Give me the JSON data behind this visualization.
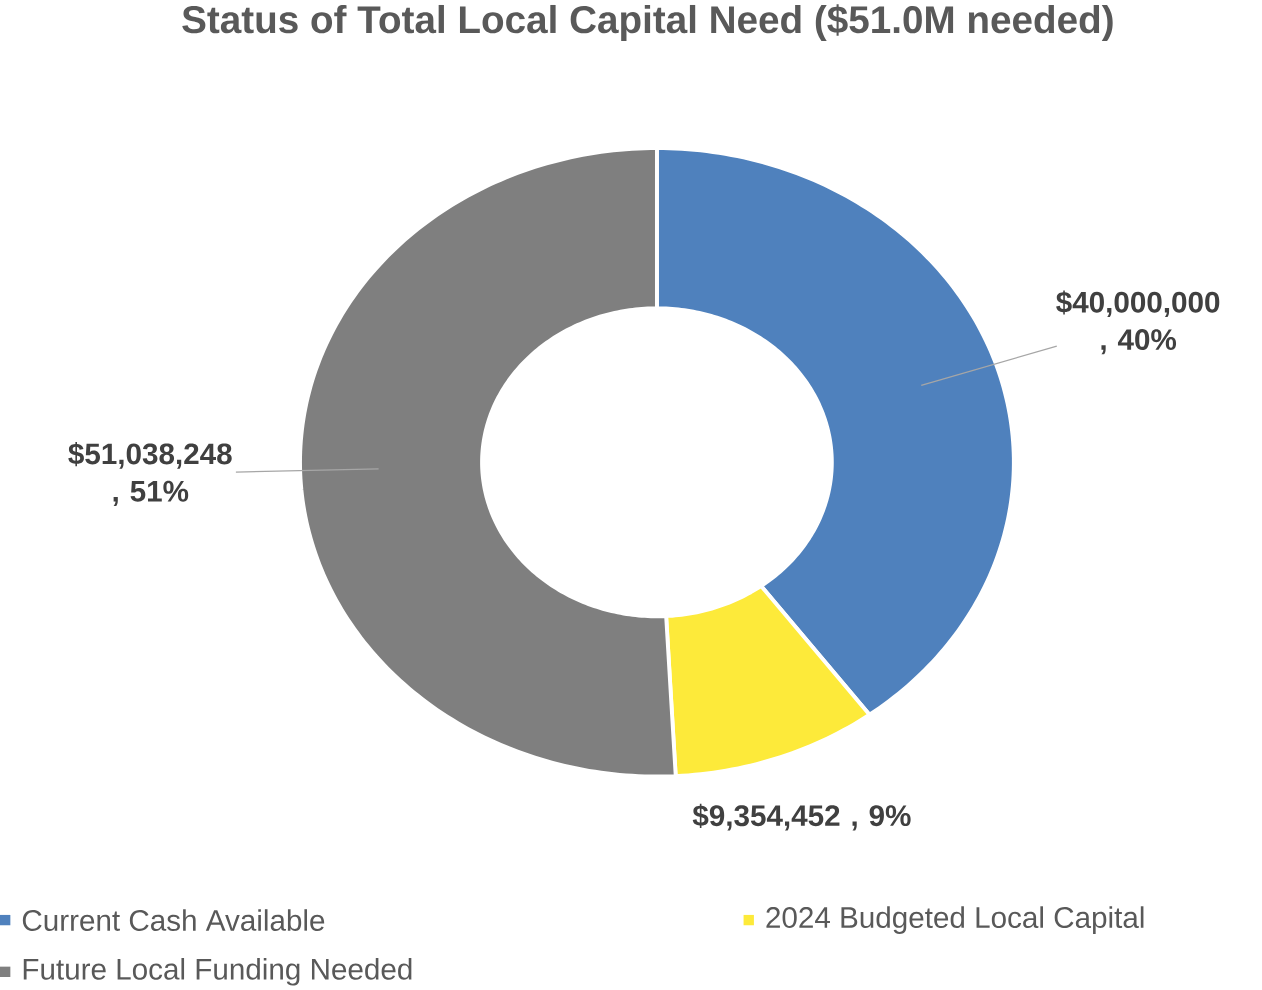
{
  "chart_data": {
    "type": "donut",
    "title": "Status of Total Local Capital Need ($51.0M needed)",
    "categories": [
      "Current Cash Available",
      "2024 Budgeted Local Capital",
      "Future Local Funding Needed"
    ],
    "values": [
      40000000,
      9354452,
      51038248
    ],
    "colors": [
      "#4f81bd",
      "#fdea3a",
      "#7f7f7f"
    ],
    "value_labels": [
      "$40,000,000 , 40%",
      "$9,354,452 , 9%",
      "$51,038,248 , 51%"
    ],
    "legend": "bottom"
  }
}
